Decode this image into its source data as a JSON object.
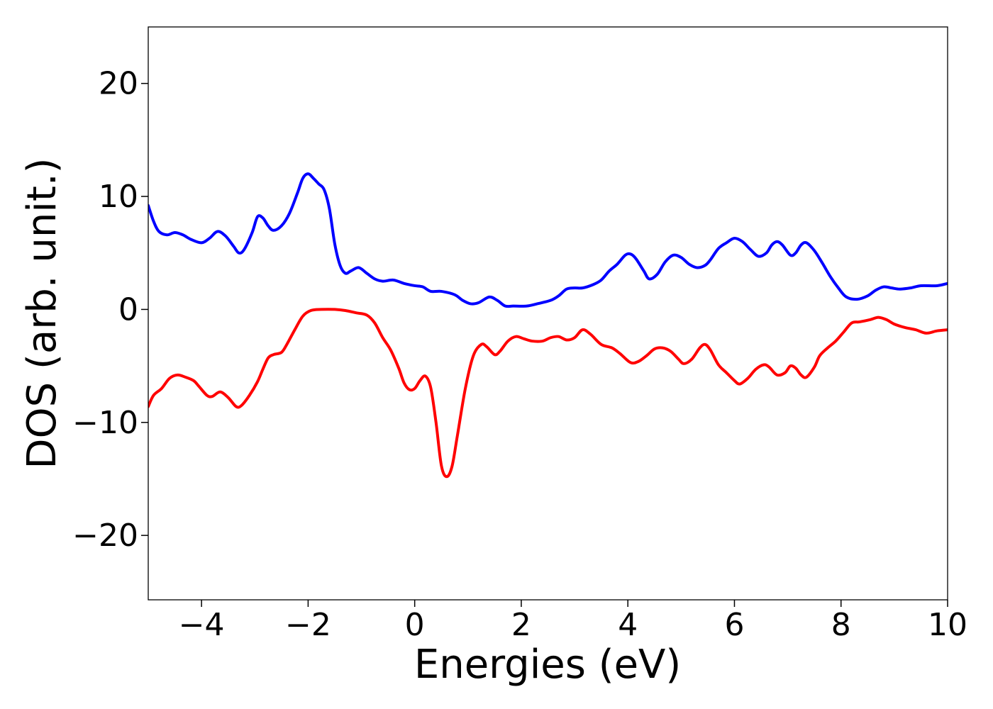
{
  "chart_data": {
    "type": "line",
    "title": "",
    "xlabel": "Energies (eV)",
    "ylabel": "DOS (arb. unit.)",
    "xlim": [
      -5,
      10
    ],
    "ylim": [
      -25.7,
      25
    ],
    "xticks": [
      -4,
      -2,
      0,
      2,
      4,
      6,
      8,
      10
    ],
    "yticks": [
      -20,
      -10,
      0,
      10,
      20
    ],
    "xtick_labels": [
      "−4",
      "−2",
      "0",
      "2",
      "4",
      "6",
      "8",
      "10"
    ],
    "ytick_labels": [
      "−20",
      "−10",
      "0",
      "10",
      "20"
    ],
    "grid": false,
    "legend": "none",
    "series": [
      {
        "color": "#0000ff",
        "points": [
          [
            -5.0,
            9.2
          ],
          [
            -4.9,
            7.8
          ],
          [
            -4.8,
            6.9
          ],
          [
            -4.65,
            6.6
          ],
          [
            -4.5,
            6.8
          ],
          [
            -4.35,
            6.6
          ],
          [
            -4.2,
            6.2
          ],
          [
            -4.0,
            5.9
          ],
          [
            -3.85,
            6.3
          ],
          [
            -3.7,
            6.9
          ],
          [
            -3.55,
            6.5
          ],
          [
            -3.4,
            5.6
          ],
          [
            -3.3,
            5.0
          ],
          [
            -3.2,
            5.3
          ],
          [
            -3.05,
            6.8
          ],
          [
            -2.95,
            8.2
          ],
          [
            -2.85,
            8.1
          ],
          [
            -2.75,
            7.4
          ],
          [
            -2.65,
            7.0
          ],
          [
            -2.5,
            7.4
          ],
          [
            -2.35,
            8.5
          ],
          [
            -2.2,
            10.3
          ],
          [
            -2.1,
            11.6
          ],
          [
            -2.0,
            12.0
          ],
          [
            -1.9,
            11.6
          ],
          [
            -1.8,
            11.1
          ],
          [
            -1.7,
            10.6
          ],
          [
            -1.6,
            8.9
          ],
          [
            -1.5,
            5.8
          ],
          [
            -1.4,
            3.9
          ],
          [
            -1.3,
            3.2
          ],
          [
            -1.2,
            3.4
          ],
          [
            -1.05,
            3.7
          ],
          [
            -0.9,
            3.2
          ],
          [
            -0.75,
            2.7
          ],
          [
            -0.6,
            2.5
          ],
          [
            -0.4,
            2.6
          ],
          [
            -0.2,
            2.3
          ],
          [
            0.0,
            2.1
          ],
          [
            0.15,
            2.0
          ],
          [
            0.3,
            1.6
          ],
          [
            0.5,
            1.6
          ],
          [
            0.75,
            1.3
          ],
          [
            0.9,
            0.8
          ],
          [
            1.05,
            0.5
          ],
          [
            1.2,
            0.6
          ],
          [
            1.4,
            1.1
          ],
          [
            1.55,
            0.8
          ],
          [
            1.7,
            0.3
          ],
          [
            1.85,
            0.3
          ],
          [
            2.1,
            0.3
          ],
          [
            2.3,
            0.5
          ],
          [
            2.55,
            0.8
          ],
          [
            2.7,
            1.2
          ],
          [
            2.85,
            1.8
          ],
          [
            3.0,
            1.9
          ],
          [
            3.15,
            1.9
          ],
          [
            3.35,
            2.2
          ],
          [
            3.5,
            2.6
          ],
          [
            3.65,
            3.4
          ],
          [
            3.8,
            4.0
          ],
          [
            3.95,
            4.8
          ],
          [
            4.05,
            4.9
          ],
          [
            4.15,
            4.5
          ],
          [
            4.3,
            3.4
          ],
          [
            4.4,
            2.7
          ],
          [
            4.55,
            3.1
          ],
          [
            4.7,
            4.2
          ],
          [
            4.85,
            4.8
          ],
          [
            5.0,
            4.6
          ],
          [
            5.15,
            4.0
          ],
          [
            5.3,
            3.7
          ],
          [
            5.45,
            3.9
          ],
          [
            5.55,
            4.4
          ],
          [
            5.7,
            5.4
          ],
          [
            5.85,
            5.9
          ],
          [
            6.0,
            6.3
          ],
          [
            6.15,
            6.0
          ],
          [
            6.3,
            5.3
          ],
          [
            6.45,
            4.7
          ],
          [
            6.6,
            5.0
          ],
          [
            6.7,
            5.7
          ],
          [
            6.8,
            6.0
          ],
          [
            6.9,
            5.7
          ],
          [
            7.05,
            4.8
          ],
          [
            7.15,
            5.0
          ],
          [
            7.25,
            5.7
          ],
          [
            7.35,
            5.9
          ],
          [
            7.5,
            5.2
          ],
          [
            7.65,
            4.1
          ],
          [
            7.8,
            2.9
          ],
          [
            7.95,
            1.9
          ],
          [
            8.1,
            1.1
          ],
          [
            8.3,
            0.9
          ],
          [
            8.5,
            1.2
          ],
          [
            8.65,
            1.7
          ],
          [
            8.8,
            2.0
          ],
          [
            8.95,
            1.9
          ],
          [
            9.1,
            1.8
          ],
          [
            9.3,
            1.9
          ],
          [
            9.5,
            2.1
          ],
          [
            9.8,
            2.1
          ],
          [
            10.0,
            2.3
          ]
        ]
      },
      {
        "color": "#ff0000",
        "points": [
          [
            -5.0,
            -8.6
          ],
          [
            -4.9,
            -7.6
          ],
          [
            -4.75,
            -7.0
          ],
          [
            -4.6,
            -6.1
          ],
          [
            -4.45,
            -5.8
          ],
          [
            -4.3,
            -6.0
          ],
          [
            -4.15,
            -6.3
          ],
          [
            -4.05,
            -6.8
          ],
          [
            -3.9,
            -7.6
          ],
          [
            -3.8,
            -7.7
          ],
          [
            -3.65,
            -7.3
          ],
          [
            -3.5,
            -7.8
          ],
          [
            -3.35,
            -8.6
          ],
          [
            -3.25,
            -8.5
          ],
          [
            -3.1,
            -7.6
          ],
          [
            -2.95,
            -6.4
          ],
          [
            -2.85,
            -5.3
          ],
          [
            -2.75,
            -4.3
          ],
          [
            -2.65,
            -4.0
          ],
          [
            -2.5,
            -3.8
          ],
          [
            -2.4,
            -3.1
          ],
          [
            -2.25,
            -1.8
          ],
          [
            -2.1,
            -0.6
          ],
          [
            -1.95,
            -0.1
          ],
          [
            -1.75,
            0.0
          ],
          [
            -1.5,
            0.0
          ],
          [
            -1.3,
            -0.1
          ],
          [
            -1.1,
            -0.3
          ],
          [
            -0.9,
            -0.5
          ],
          [
            -0.75,
            -1.2
          ],
          [
            -0.6,
            -2.5
          ],
          [
            -0.45,
            -3.6
          ],
          [
            -0.3,
            -5.2
          ],
          [
            -0.2,
            -6.5
          ],
          [
            -0.1,
            -7.1
          ],
          [
            0.0,
            -7.0
          ],
          [
            0.1,
            -6.3
          ],
          [
            0.2,
            -5.9
          ],
          [
            0.3,
            -6.9
          ],
          [
            0.4,
            -10.0
          ],
          [
            0.5,
            -13.8
          ],
          [
            0.6,
            -14.8
          ],
          [
            0.7,
            -13.9
          ],
          [
            0.8,
            -11.2
          ],
          [
            0.95,
            -7.0
          ],
          [
            1.1,
            -4.1
          ],
          [
            1.25,
            -3.1
          ],
          [
            1.35,
            -3.3
          ],
          [
            1.5,
            -4.0
          ],
          [
            1.6,
            -3.7
          ],
          [
            1.75,
            -2.8
          ],
          [
            1.9,
            -2.4
          ],
          [
            2.05,
            -2.6
          ],
          [
            2.2,
            -2.8
          ],
          [
            2.4,
            -2.8
          ],
          [
            2.55,
            -2.5
          ],
          [
            2.7,
            -2.4
          ],
          [
            2.85,
            -2.7
          ],
          [
            3.0,
            -2.5
          ],
          [
            3.15,
            -1.8
          ],
          [
            3.3,
            -2.2
          ],
          [
            3.5,
            -3.1
          ],
          [
            3.7,
            -3.4
          ],
          [
            3.85,
            -3.9
          ],
          [
            4.05,
            -4.7
          ],
          [
            4.2,
            -4.6
          ],
          [
            4.35,
            -4.1
          ],
          [
            4.5,
            -3.5
          ],
          [
            4.65,
            -3.4
          ],
          [
            4.8,
            -3.7
          ],
          [
            4.95,
            -4.4
          ],
          [
            5.05,
            -4.8
          ],
          [
            5.2,
            -4.4
          ],
          [
            5.35,
            -3.4
          ],
          [
            5.45,
            -3.1
          ],
          [
            5.55,
            -3.6
          ],
          [
            5.7,
            -4.9
          ],
          [
            5.85,
            -5.6
          ],
          [
            6.0,
            -6.3
          ],
          [
            6.1,
            -6.6
          ],
          [
            6.25,
            -6.1
          ],
          [
            6.4,
            -5.3
          ],
          [
            6.55,
            -4.9
          ],
          [
            6.65,
            -5.1
          ],
          [
            6.8,
            -5.8
          ],
          [
            6.95,
            -5.6
          ],
          [
            7.05,
            -5.0
          ],
          [
            7.15,
            -5.2
          ],
          [
            7.25,
            -5.8
          ],
          [
            7.35,
            -6.0
          ],
          [
            7.5,
            -5.1
          ],
          [
            7.6,
            -4.1
          ],
          [
            7.75,
            -3.4
          ],
          [
            7.9,
            -2.8
          ],
          [
            8.05,
            -2.0
          ],
          [
            8.2,
            -1.2
          ],
          [
            8.35,
            -1.1
          ],
          [
            8.55,
            -0.9
          ],
          [
            8.7,
            -0.7
          ],
          [
            8.85,
            -0.9
          ],
          [
            9.0,
            -1.3
          ],
          [
            9.2,
            -1.6
          ],
          [
            9.4,
            -1.8
          ],
          [
            9.6,
            -2.1
          ],
          [
            9.8,
            -1.9
          ],
          [
            10.0,
            -1.8
          ]
        ]
      }
    ]
  }
}
